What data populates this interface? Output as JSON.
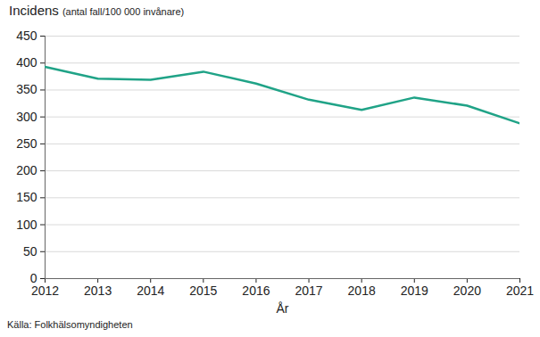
{
  "chart_data": {
    "type": "line",
    "ylabel": "Incidens",
    "subtitle": "(antal fall/100 000 invånare)",
    "xlabel": "År",
    "source": "Källa: Folkhälsomyndigheten",
    "x": [
      2012,
      2013,
      2014,
      2015,
      2016,
      2017,
      2018,
      2019,
      2020,
      2021
    ],
    "values": [
      393,
      371,
      369,
      384,
      362,
      332,
      313,
      336,
      321,
      288
    ],
    "color": "#20a387",
    "xlim": [
      2012,
      2021
    ],
    "xticks": [
      2012,
      2013,
      2014,
      2015,
      2016,
      2017,
      2018,
      2019,
      2020,
      2021
    ],
    "ylim": [
      0,
      450
    ],
    "yticks": [
      0,
      50,
      100,
      150,
      200,
      250,
      300,
      350,
      400,
      450
    ],
    "grid": true
  }
}
